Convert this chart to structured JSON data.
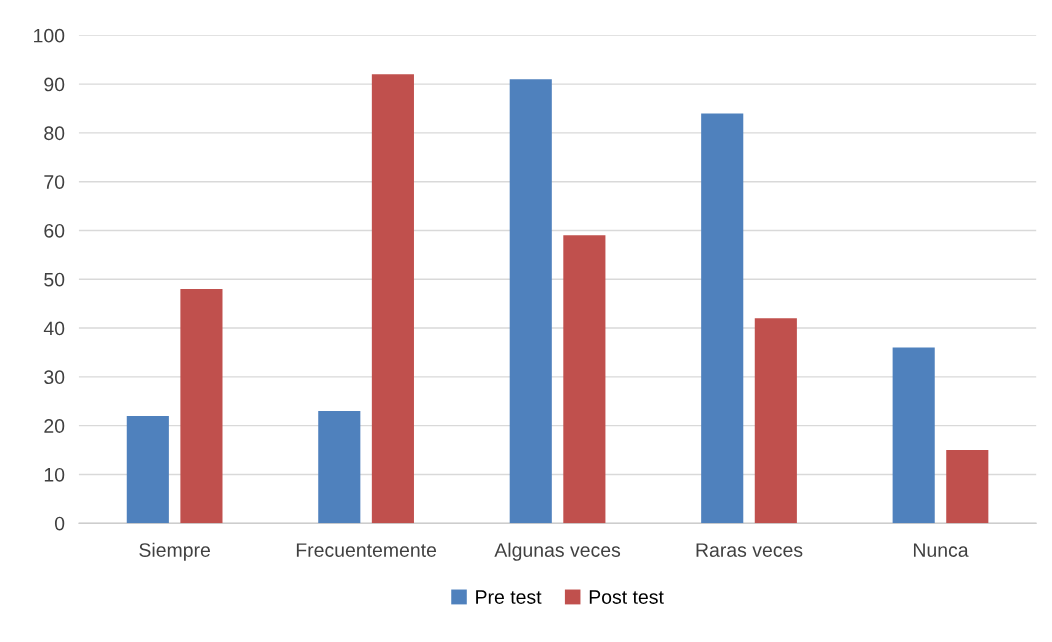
{
  "chart_data": {
    "type": "bar",
    "categories": [
      "Siempre",
      "Frecuentemente",
      "Algunas veces",
      "Raras veces",
      "Nunca"
    ],
    "series": [
      {
        "name": "Pre test",
        "color": "#4f81bd",
        "values": [
          22,
          23,
          91,
          84,
          36
        ]
      },
      {
        "name": "Post test",
        "color": "#c0504d",
        "values": [
          48,
          92,
          59,
          42,
          15
        ]
      }
    ],
    "ylim": [
      0,
      100
    ],
    "yticks": [
      0,
      10,
      20,
      30,
      40,
      50,
      60,
      70,
      80,
      90,
      100
    ],
    "grid": "y",
    "legend": "bottom"
  }
}
